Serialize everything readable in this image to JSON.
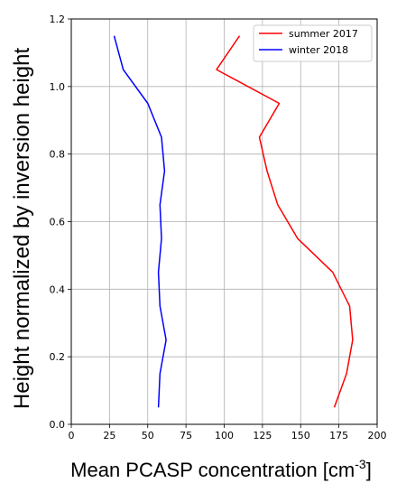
{
  "chart_data": {
    "type": "line",
    "xlabel": "Mean PCASP concentration [cm",
    "xlabel_sup": "-3",
    "xlabel_end": "]",
    "ylabel": "Height normalized by inversion height",
    "xlim": [
      0,
      200
    ],
    "ylim": [
      0,
      1.2
    ],
    "xticks": [
      0,
      25,
      50,
      75,
      100,
      125,
      150,
      175,
      200
    ],
    "xtick_labels": [
      "0",
      "25",
      "50",
      "75",
      "100",
      "125",
      "150",
      "175",
      "200"
    ],
    "yticks": [
      0,
      0.2,
      0.4,
      0.6,
      0.8,
      1.0,
      1.2
    ],
    "ytick_labels": [
      "0.0",
      "0.2",
      "0.4",
      "0.6",
      "0.8",
      "1.0",
      "1.2"
    ],
    "grid": true,
    "legend_position": "top-right",
    "series": [
      {
        "name": "summer 2017",
        "color": "#ff0000",
        "points": [
          {
            "x": 172,
            "y": 0.05
          },
          {
            "x": 180,
            "y": 0.15
          },
          {
            "x": 184,
            "y": 0.25
          },
          {
            "x": 182,
            "y": 0.35
          },
          {
            "x": 171,
            "y": 0.45
          },
          {
            "x": 148,
            "y": 0.55
          },
          {
            "x": 135,
            "y": 0.65
          },
          {
            "x": 128,
            "y": 0.75
          },
          {
            "x": 123,
            "y": 0.85
          },
          {
            "x": 136,
            "y": 0.95
          },
          {
            "x": 95,
            "y": 1.05
          },
          {
            "x": 110,
            "y": 1.15
          }
        ]
      },
      {
        "name": "winter 2018",
        "color": "#0000ff",
        "points": [
          {
            "x": 57,
            "y": 0.05
          },
          {
            "x": 58,
            "y": 0.15
          },
          {
            "x": 62,
            "y": 0.25
          },
          {
            "x": 58,
            "y": 0.35
          },
          {
            "x": 57,
            "y": 0.45
          },
          {
            "x": 59,
            "y": 0.55
          },
          {
            "x": 58,
            "y": 0.65
          },
          {
            "x": 61,
            "y": 0.75
          },
          {
            "x": 59,
            "y": 0.85
          },
          {
            "x": 50,
            "y": 0.95
          },
          {
            "x": 34,
            "y": 1.05
          },
          {
            "x": 28,
            "y": 1.15
          }
        ]
      }
    ]
  }
}
